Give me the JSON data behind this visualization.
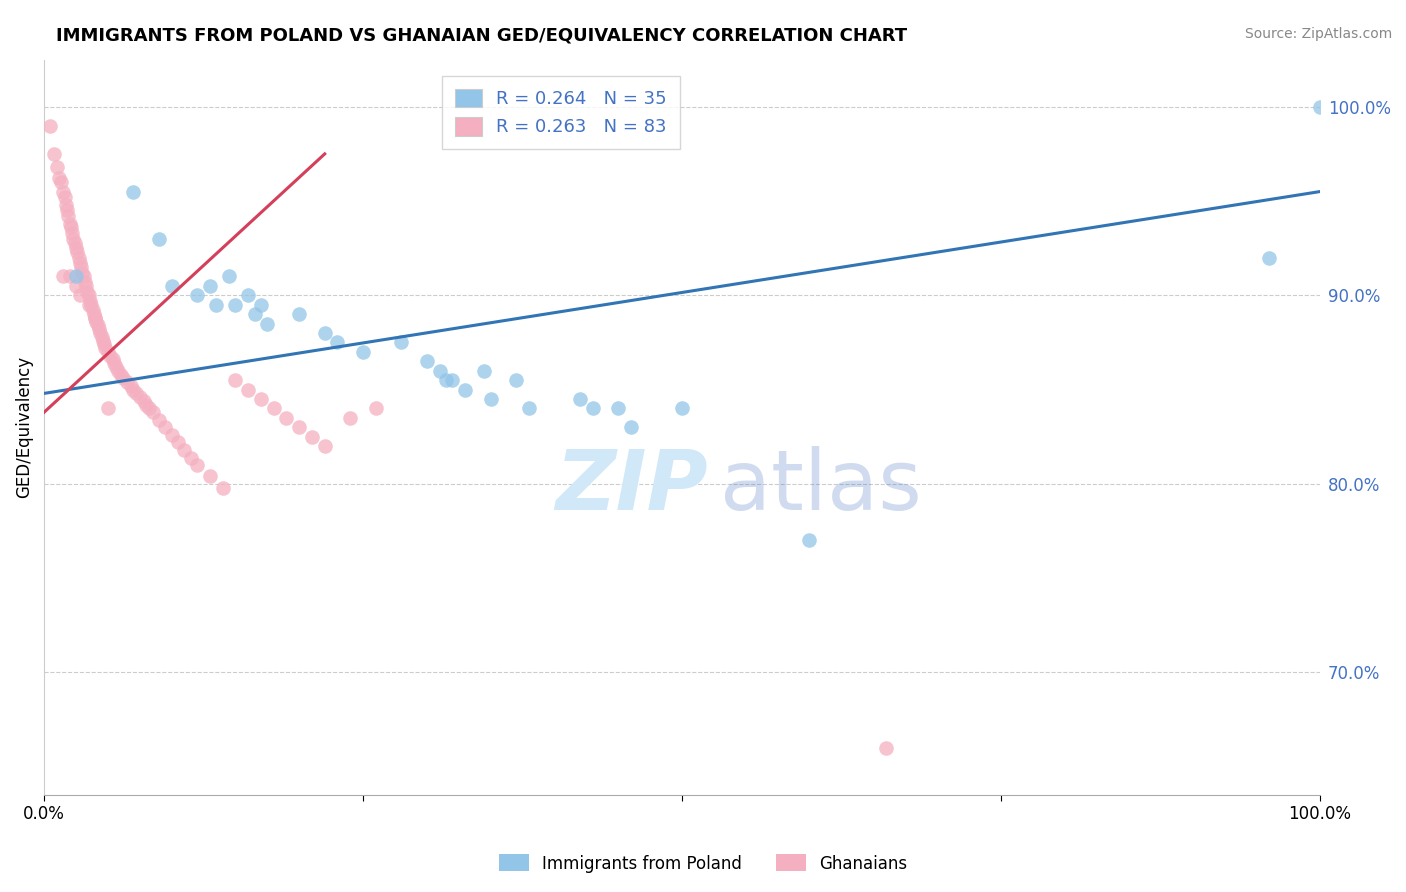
{
  "title": "IMMIGRANTS FROM POLAND VS GHANAIAN GED/EQUIVALENCY CORRELATION CHART",
  "source": "Source: ZipAtlas.com",
  "ylabel": "GED/Equivalency",
  "ytick_labels": [
    "70.0%",
    "80.0%",
    "90.0%",
    "100.0%"
  ],
  "ytick_values": [
    0.7,
    0.8,
    0.9,
    1.0
  ],
  "xlim": [
    0.0,
    1.0
  ],
  "ylim": [
    0.635,
    1.025
  ],
  "legend_blue_r": "R = 0.264",
  "legend_blue_n": "N = 35",
  "legend_pink_r": "R = 0.263",
  "legend_pink_n": "N = 83",
  "legend_label_blue": "Immigrants from Poland",
  "legend_label_pink": "Ghanaians",
  "color_blue": "#92c5e8",
  "color_pink": "#f4afc0",
  "color_blue_line": "#3275b5",
  "color_pink_line": "#d43f5a",
  "blue_line_x": [
    0.0,
    1.0
  ],
  "blue_line_y": [
    0.848,
    0.955
  ],
  "pink_line_x": [
    0.0,
    0.22
  ],
  "pink_line_y": [
    0.838,
    0.975
  ],
  "blue_scatter_x": [
    0.025,
    0.07,
    0.09,
    0.1,
    0.12,
    0.13,
    0.135,
    0.145,
    0.15,
    0.16,
    0.165,
    0.17,
    0.175,
    0.2,
    0.22,
    0.23,
    0.25,
    0.28,
    0.3,
    0.31,
    0.315,
    0.32,
    0.33,
    0.345,
    0.35,
    0.37,
    0.38,
    0.42,
    0.43,
    0.45,
    0.46,
    0.5,
    0.6,
    0.96,
    1.0
  ],
  "blue_scatter_y": [
    0.91,
    0.955,
    0.93,
    0.905,
    0.9,
    0.905,
    0.895,
    0.91,
    0.895,
    0.9,
    0.89,
    0.895,
    0.885,
    0.89,
    0.88,
    0.875,
    0.87,
    0.875,
    0.865,
    0.86,
    0.855,
    0.855,
    0.85,
    0.86,
    0.845,
    0.855,
    0.84,
    0.845,
    0.84,
    0.84,
    0.83,
    0.84,
    0.77,
    0.92,
    1.0
  ],
  "pink_scatter_x": [
    0.005,
    0.008,
    0.01,
    0.012,
    0.013,
    0.015,
    0.016,
    0.017,
    0.018,
    0.019,
    0.02,
    0.021,
    0.022,
    0.023,
    0.024,
    0.025,
    0.026,
    0.027,
    0.028,
    0.029,
    0.03,
    0.031,
    0.032,
    0.033,
    0.034,
    0.035,
    0.036,
    0.037,
    0.038,
    0.039,
    0.04,
    0.041,
    0.042,
    0.043,
    0.044,
    0.045,
    0.046,
    0.047,
    0.048,
    0.05,
    0.052,
    0.054,
    0.055,
    0.056,
    0.058,
    0.06,
    0.062,
    0.065,
    0.068,
    0.07,
    0.072,
    0.075,
    0.078,
    0.08,
    0.082,
    0.085,
    0.09,
    0.095,
    0.1,
    0.105,
    0.11,
    0.115,
    0.12,
    0.13,
    0.14,
    0.15,
    0.16,
    0.17,
    0.18,
    0.19,
    0.2,
    0.21,
    0.22,
    0.24,
    0.26,
    0.015,
    0.02,
    0.025,
    0.028,
    0.035,
    0.04,
    0.05,
    0.66
  ],
  "pink_scatter_y": [
    0.99,
    0.975,
    0.968,
    0.962,
    0.96,
    0.955,
    0.952,
    0.948,
    0.945,
    0.942,
    0.938,
    0.936,
    0.933,
    0.93,
    0.928,
    0.925,
    0.923,
    0.92,
    0.917,
    0.915,
    0.912,
    0.91,
    0.907,
    0.905,
    0.902,
    0.9,
    0.897,
    0.895,
    0.892,
    0.89,
    0.888,
    0.886,
    0.884,
    0.882,
    0.88,
    0.878,
    0.876,
    0.874,
    0.872,
    0.87,
    0.868,
    0.866,
    0.864,
    0.862,
    0.86,
    0.858,
    0.856,
    0.854,
    0.852,
    0.85,
    0.848,
    0.846,
    0.844,
    0.842,
    0.84,
    0.838,
    0.834,
    0.83,
    0.826,
    0.822,
    0.818,
    0.814,
    0.81,
    0.804,
    0.798,
    0.855,
    0.85,
    0.845,
    0.84,
    0.835,
    0.83,
    0.825,
    0.82,
    0.835,
    0.84,
    0.91,
    0.91,
    0.905,
    0.9,
    0.895,
    0.888,
    0.84,
    0.66
  ],
  "dashed_line_color": "#bbbbbb",
  "grid_color": "#cccccc"
}
